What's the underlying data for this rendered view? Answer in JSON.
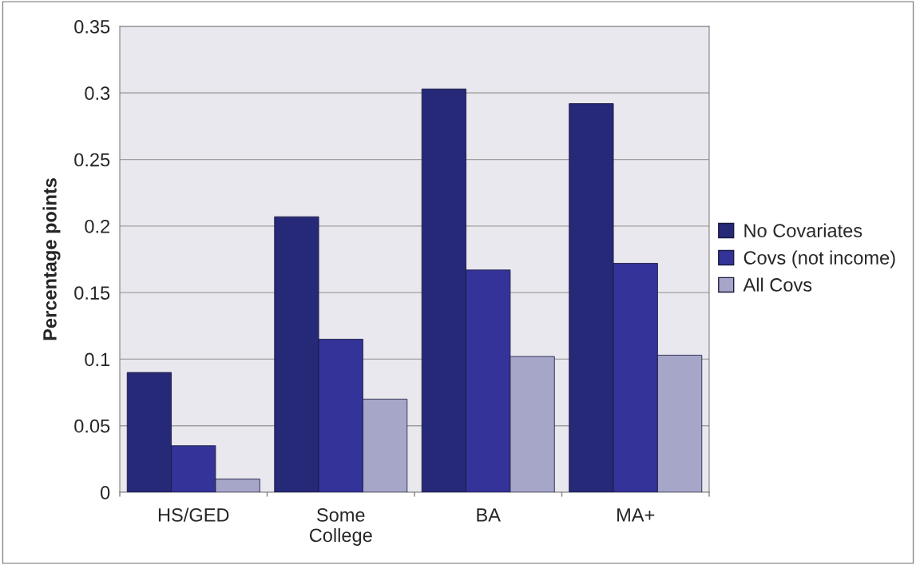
{
  "chart_data": {
    "type": "bar",
    "ylabel": "Percentage points",
    "categories": [
      "HS/GED",
      "Some\nCollege",
      "BA",
      "MA+"
    ],
    "series": [
      {
        "name": "No Covariates",
        "color": "#262878",
        "values": [
          0.09,
          0.207,
          0.303,
          0.292
        ]
      },
      {
        "name": "Covs (not income)",
        "color": "#333399",
        "values": [
          0.035,
          0.115,
          0.167,
          0.172
        ]
      },
      {
        "name": "All Covs",
        "color": "#a6a6c8",
        "values": [
          0.01,
          0.07,
          0.102,
          0.103
        ]
      }
    ],
    "ylim": [
      0,
      0.35
    ],
    "yticks": [
      0,
      0.05,
      0.1,
      0.15,
      0.2,
      0.25,
      0.3,
      0.35
    ],
    "grid": "y",
    "legend": "right"
  }
}
